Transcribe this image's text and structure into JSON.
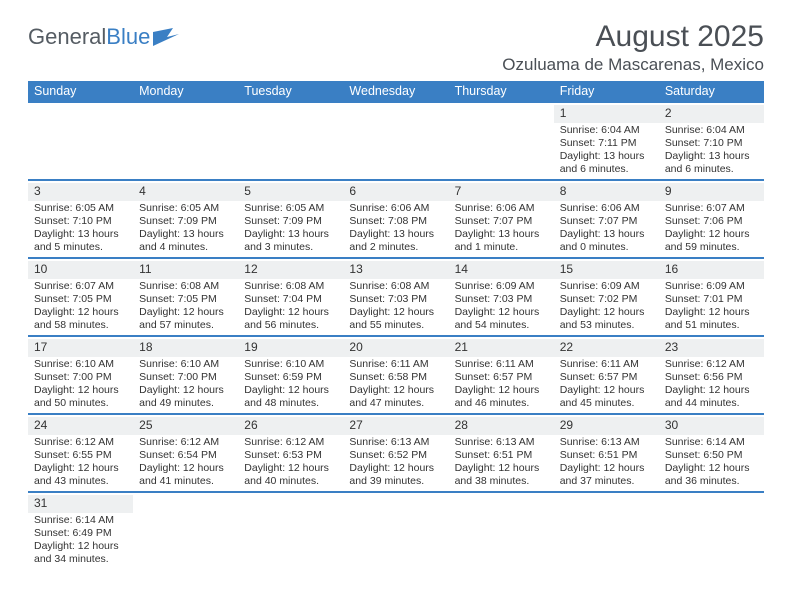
{
  "brand": {
    "part1": "General",
    "part2": "Blue"
  },
  "title": "August 2025",
  "location": "Ozuluama de Mascarenas, Mexico",
  "colors": {
    "header_bg": "#3a7fc4",
    "header_text": "#ffffff",
    "daynum_bg": "#eef0f1",
    "body_text": "#333333",
    "brand_gray": "#555c63",
    "brand_blue": "#3a7fc4"
  },
  "dayHeaders": [
    "Sunday",
    "Monday",
    "Tuesday",
    "Wednesday",
    "Thursday",
    "Friday",
    "Saturday"
  ],
  "weeks": [
    [
      null,
      null,
      null,
      null,
      null,
      {
        "n": "1",
        "sr": "6:04 AM",
        "ss": "7:11 PM",
        "dl": "13 hours and 6 minutes."
      },
      {
        "n": "2",
        "sr": "6:04 AM",
        "ss": "7:10 PM",
        "dl": "13 hours and 6 minutes."
      }
    ],
    [
      {
        "n": "3",
        "sr": "6:05 AM",
        "ss": "7:10 PM",
        "dl": "13 hours and 5 minutes."
      },
      {
        "n": "4",
        "sr": "6:05 AM",
        "ss": "7:09 PM",
        "dl": "13 hours and 4 minutes."
      },
      {
        "n": "5",
        "sr": "6:05 AM",
        "ss": "7:09 PM",
        "dl": "13 hours and 3 minutes."
      },
      {
        "n": "6",
        "sr": "6:06 AM",
        "ss": "7:08 PM",
        "dl": "13 hours and 2 minutes."
      },
      {
        "n": "7",
        "sr": "6:06 AM",
        "ss": "7:07 PM",
        "dl": "13 hours and 1 minute."
      },
      {
        "n": "8",
        "sr": "6:06 AM",
        "ss": "7:07 PM",
        "dl": "13 hours and 0 minutes."
      },
      {
        "n": "9",
        "sr": "6:07 AM",
        "ss": "7:06 PM",
        "dl": "12 hours and 59 minutes."
      }
    ],
    [
      {
        "n": "10",
        "sr": "6:07 AM",
        "ss": "7:05 PM",
        "dl": "12 hours and 58 minutes."
      },
      {
        "n": "11",
        "sr": "6:08 AM",
        "ss": "7:05 PM",
        "dl": "12 hours and 57 minutes."
      },
      {
        "n": "12",
        "sr": "6:08 AM",
        "ss": "7:04 PM",
        "dl": "12 hours and 56 minutes."
      },
      {
        "n": "13",
        "sr": "6:08 AM",
        "ss": "7:03 PM",
        "dl": "12 hours and 55 minutes."
      },
      {
        "n": "14",
        "sr": "6:09 AM",
        "ss": "7:03 PM",
        "dl": "12 hours and 54 minutes."
      },
      {
        "n": "15",
        "sr": "6:09 AM",
        "ss": "7:02 PM",
        "dl": "12 hours and 53 minutes."
      },
      {
        "n": "16",
        "sr": "6:09 AM",
        "ss": "7:01 PM",
        "dl": "12 hours and 51 minutes."
      }
    ],
    [
      {
        "n": "17",
        "sr": "6:10 AM",
        "ss": "7:00 PM",
        "dl": "12 hours and 50 minutes."
      },
      {
        "n": "18",
        "sr": "6:10 AM",
        "ss": "7:00 PM",
        "dl": "12 hours and 49 minutes."
      },
      {
        "n": "19",
        "sr": "6:10 AM",
        "ss": "6:59 PM",
        "dl": "12 hours and 48 minutes."
      },
      {
        "n": "20",
        "sr": "6:11 AM",
        "ss": "6:58 PM",
        "dl": "12 hours and 47 minutes."
      },
      {
        "n": "21",
        "sr": "6:11 AM",
        "ss": "6:57 PM",
        "dl": "12 hours and 46 minutes."
      },
      {
        "n": "22",
        "sr": "6:11 AM",
        "ss": "6:57 PM",
        "dl": "12 hours and 45 minutes."
      },
      {
        "n": "23",
        "sr": "6:12 AM",
        "ss": "6:56 PM",
        "dl": "12 hours and 44 minutes."
      }
    ],
    [
      {
        "n": "24",
        "sr": "6:12 AM",
        "ss": "6:55 PM",
        "dl": "12 hours and 43 minutes."
      },
      {
        "n": "25",
        "sr": "6:12 AM",
        "ss": "6:54 PM",
        "dl": "12 hours and 41 minutes."
      },
      {
        "n": "26",
        "sr": "6:12 AM",
        "ss": "6:53 PM",
        "dl": "12 hours and 40 minutes."
      },
      {
        "n": "27",
        "sr": "6:13 AM",
        "ss": "6:52 PM",
        "dl": "12 hours and 39 minutes."
      },
      {
        "n": "28",
        "sr": "6:13 AM",
        "ss": "6:51 PM",
        "dl": "12 hours and 38 minutes."
      },
      {
        "n": "29",
        "sr": "6:13 AM",
        "ss": "6:51 PM",
        "dl": "12 hours and 37 minutes."
      },
      {
        "n": "30",
        "sr": "6:14 AM",
        "ss": "6:50 PM",
        "dl": "12 hours and 36 minutes."
      }
    ],
    [
      {
        "n": "31",
        "sr": "6:14 AM",
        "ss": "6:49 PM",
        "dl": "12 hours and 34 minutes."
      },
      null,
      null,
      null,
      null,
      null,
      null
    ]
  ],
  "labels": {
    "sunrise": "Sunrise:",
    "sunset": "Sunset:",
    "daylight": "Daylight:"
  }
}
